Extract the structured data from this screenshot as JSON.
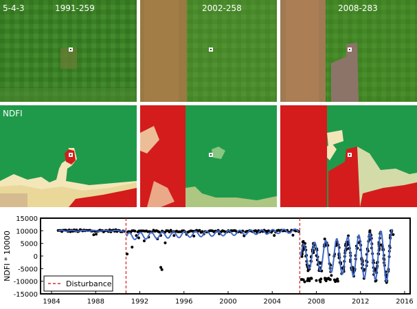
{
  "imagery": {
    "row_label_rgb": "5-4-3",
    "row_label_ndfi": "NDFI",
    "dates": [
      "1991-259",
      "2002-258",
      "2008-283"
    ]
  },
  "colors": {
    "forest_green": "#2f7a25",
    "ndfi_green": "#1f9a4a",
    "ndfi_red": "#d41c1c",
    "ndfi_cream": "#f3e6b8",
    "fit_line": "#4169c9",
    "disturbance": "#d42a2a",
    "points": "#000000"
  },
  "chart_data": {
    "type": "scatter",
    "ylabel": "NDFI * 10000",
    "xlabel": "",
    "xlim": [
      1983.0,
      2016.5
    ],
    "ylim": [
      -15000,
      15000
    ],
    "xticks": [
      1984,
      1988,
      1992,
      1996,
      2000,
      2004,
      2008,
      2012,
      2016
    ],
    "yticks": [
      15000,
      10000,
      5000,
      0,
      -5000,
      -10000,
      -15000
    ],
    "grid": false,
    "legend": {
      "position": "bottom-left",
      "entries": [
        "Disturbance"
      ]
    },
    "disturbances": [
      1990.75,
      2006.5
    ],
    "series": [
      {
        "name": "",
        "kind": "points",
        "stable_segments": [
          {
            "x_start": 1984.6,
            "x_end": 1990.6,
            "y": 10000,
            "n": 55
          },
          {
            "x_start": 1990.9,
            "x_end": 2006.4,
            "y": 9800,
            "n": 120
          }
        ],
        "outliers": [
          [
            1990.85,
            800
          ],
          [
            1991.3,
            3500
          ],
          [
            1991.9,
            7200
          ],
          [
            1992.4,
            6000
          ],
          [
            1992.8,
            7500
          ],
          [
            1993.6,
            6800
          ],
          [
            1993.9,
            -4500
          ],
          [
            1994.0,
            -5400
          ],
          [
            1994.3,
            5200
          ],
          [
            1995.1,
            8100
          ],
          [
            1996.9,
            7900
          ],
          [
            1999.2,
            8800
          ],
          [
            2003.5,
            9000
          ]
        ],
        "post_cycles": {
          "x_start": 2006.6,
          "x_end": 2015.0,
          "y_mean": 0,
          "amplitude_start": 4000,
          "amplitude_end": 9500,
          "n": 260,
          "low_cluster_y": -9500
        }
      },
      {
        "name": "",
        "kind": "fit_line",
        "segments": [
          {
            "x_start": 1984.6,
            "x_end": 1990.7,
            "y": 10000,
            "amplitude": 150,
            "period": 1
          },
          {
            "x_start": 1990.8,
            "x_end": 2006.4,
            "y_start": 7800,
            "y_end": 10000,
            "amplitude_start": 1400,
            "amplitude_end": 700,
            "period": 1
          },
          {
            "x_start": 2006.6,
            "x_end": 2014.9,
            "y": 0,
            "amplitude_start": 4500,
            "amplitude_end": 10500,
            "period": 1
          }
        ]
      }
    ]
  }
}
